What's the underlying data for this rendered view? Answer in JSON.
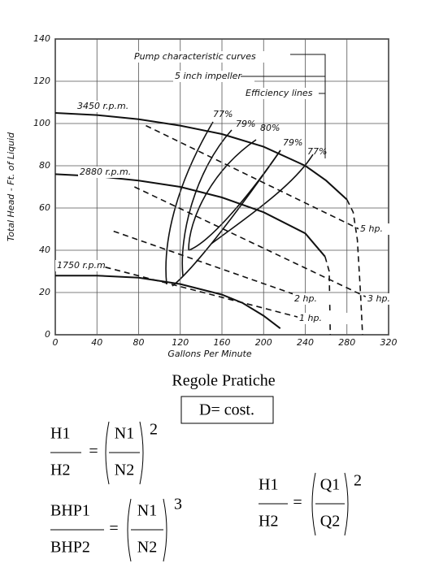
{
  "chart_data": {
    "type": "line",
    "x_label": "Gallons Per Minute",
    "y_label": "Total Head - Ft. of Liquid",
    "xlim": [
      0,
      320
    ],
    "xticks": [
      0,
      40,
      80,
      120,
      160,
      200,
      240,
      280,
      320
    ],
    "ylim": [
      0,
      140
    ],
    "yticks": [
      0,
      20,
      40,
      60,
      80,
      100,
      120,
      140
    ],
    "grid": true,
    "series": [
      {
        "name": "3450 r.p.m.",
        "color": "#111111",
        "x": [
          0,
          40,
          80,
          120,
          160,
          200,
          240,
          260,
          280
        ],
        "values": [
          105,
          104,
          102,
          99,
          95,
          89,
          80,
          73,
          64
        ]
      },
      {
        "color": "#111111",
        "dashed": true,
        "x": [
          280,
          286,
          290,
          293,
          295
        ],
        "values": [
          64,
          58,
          45,
          20,
          0
        ]
      },
      {
        "name": "2880 r.p.m.",
        "color": "#111111",
        "x": [
          0,
          40,
          80,
          120,
          160,
          200,
          240,
          259
        ],
        "values": [
          76,
          75,
          73,
          70,
          65,
          58,
          48,
          37
        ]
      },
      {
        "color": "#111111",
        "dashed": true,
        "x": [
          259,
          263,
          264
        ],
        "values": [
          37,
          30,
          0
        ]
      },
      {
        "name": "1750 r.p.m.",
        "color": "#111111",
        "x": [
          0,
          40,
          80,
          120,
          160,
          180,
          200,
          216
        ],
        "values": [
          28,
          28,
          27,
          24,
          19,
          15,
          9,
          3
        ]
      },
      {
        "name": "5 hp.",
        "color": "#111111",
        "dashed": true,
        "x": [
          87,
          296
        ],
        "values": [
          99,
          49
        ]
      },
      {
        "name": "3 hp.",
        "color": "#111111",
        "dashed": true,
        "x": [
          76,
          298
        ],
        "values": [
          70,
          18
        ]
      },
      {
        "name": "2 hp.",
        "color": "#111111",
        "dashed": true,
        "x": [
          56,
          236
        ],
        "values": [
          49,
          18
        ]
      },
      {
        "name": "1 hp.",
        "color": "#111111",
        "dashed": true,
        "x": [
          48,
          236
        ],
        "values": [
          32,
          8
        ]
      }
    ],
    "annotations": [
      "Pump characteristic curves",
      "5 inch impeller",
      "Efficiency lines",
      "77%",
      "79%",
      "80%",
      "79%",
      "77%"
    ]
  },
  "document": {
    "title": "Regole Pratiche",
    "boxed_note": "D= cost.",
    "formulas": [
      {
        "lhs_num": "H1",
        "lhs_den": "H2",
        "equals": "=",
        "rhs_num": "N1",
        "rhs_den": "N2",
        "exponent": "2"
      },
      {
        "lhs_num": "BHP1",
        "lhs_den": "BHP2",
        "equals": "=",
        "rhs_num": "N1",
        "rhs_den": "N2",
        "exponent": "3"
      },
      {
        "lhs_num": "H1",
        "lhs_den": "H2",
        "equals": "=",
        "rhs_num": "Q1",
        "rhs_den": "Q2",
        "exponent": "2"
      }
    ]
  }
}
